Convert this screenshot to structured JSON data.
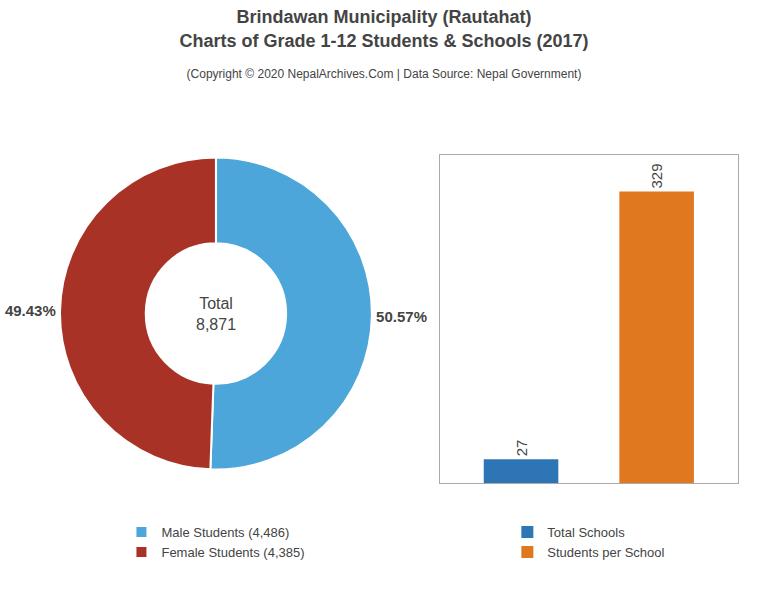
{
  "chart_data": [
    {
      "type": "donut",
      "title": "Brindawan Municipality (Rautahat)\nCharts of Grade 1-12 Students & Schools (2017)",
      "subtitle": "(Copyright © 2020 NepalArchives.Com | Data Source: Nepal Government)",
      "categories": [
        "Male Students (4,486)",
        "Female Students (4,385)"
      ],
      "values": [
        50.57,
        49.43
      ],
      "value_labels": [
        "50.57%",
        "49.43%"
      ],
      "colors": [
        "#4da6d9",
        "#a93226"
      ],
      "data_labels": true,
      "annotations": [
        "Total",
        "8,871"
      ],
      "legend": "bottom"
    },
    {
      "type": "bar",
      "categories": [
        "Total Schools",
        "Students per School"
      ],
      "values": [
        27,
        329
      ],
      "colors": [
        "#2e75b6",
        "#e07820"
      ],
      "data_labels": true,
      "ylim": [
        0,
        370
      ],
      "tick_labels": false,
      "legend": "bottom"
    }
  ]
}
